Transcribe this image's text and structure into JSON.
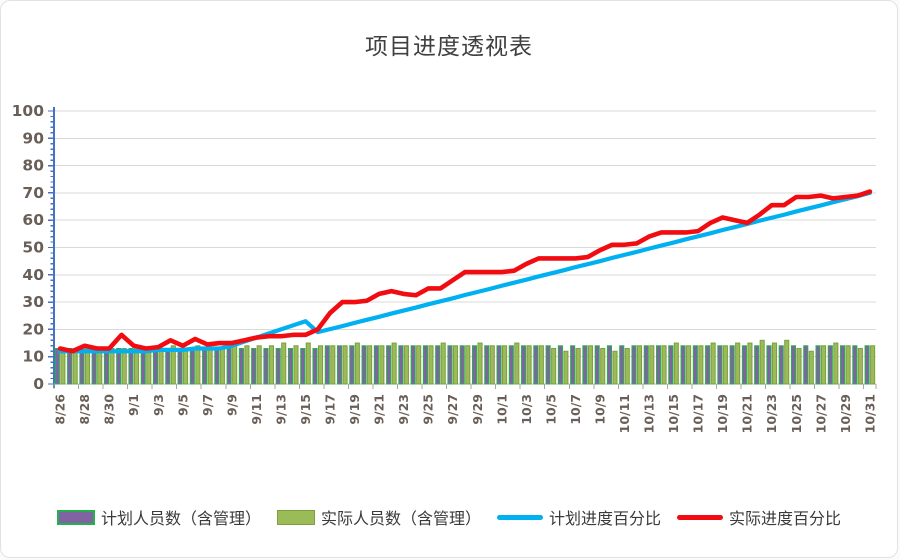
{
  "page": {
    "title": "项目进度透视表"
  },
  "colors": {
    "planned_staff_fill": "#8064A2",
    "planned_staff_border": "#22B14C",
    "actual_staff_fill": "#9BBB59",
    "actual_staff_border": "#7E9E3F",
    "planned_pct_line": "#00B0F0",
    "actual_pct_line": "#F10C12",
    "gridline": "#D9D9D9",
    "y_axis_line": "#4472C4",
    "x_axis_line": "#BFBFBF",
    "tick_mark": "#A6A6A6",
    "tick_label": "#6A5F58",
    "title_text": "#404040",
    "legend_text": "#3A3A3A"
  },
  "legend": {
    "items": [
      {
        "label": "计划人员数（含管理）",
        "swatch": "bar-purple"
      },
      {
        "label": "实际人员数（含管理）",
        "swatch": "bar-green"
      },
      {
        "label": "计划进度百分比",
        "swatch": "line-blue"
      },
      {
        "label": "实际进度百分比",
        "swatch": "line-red"
      }
    ]
  },
  "chart_data": {
    "type": "combo",
    "title": "项目进度透视表",
    "xlabel": "",
    "ylabel": "",
    "ylim": [
      0,
      100
    ],
    "y_step": 10,
    "grid": true,
    "legend_position": "bottom",
    "x_label_every": 2,
    "x": [
      "8/26",
      "8/27",
      "8/28",
      "8/29",
      "8/30",
      "8/31",
      "9/1",
      "9/2",
      "9/3",
      "9/4",
      "9/5",
      "9/6",
      "9/7",
      "9/8",
      "9/9",
      "9/10",
      "9/11",
      "9/12",
      "9/13",
      "9/14",
      "9/15",
      "9/16",
      "9/17",
      "9/18",
      "9/19",
      "9/20",
      "9/21",
      "9/22",
      "9/23",
      "9/24",
      "9/25",
      "9/26",
      "9/27",
      "9/28",
      "9/29",
      "9/30",
      "10/1",
      "10/2",
      "10/3",
      "10/4",
      "10/5",
      "10/6",
      "10/7",
      "10/8",
      "10/9",
      "10/10",
      "10/11",
      "10/12",
      "10/13",
      "10/14",
      "10/15",
      "10/16",
      "10/17",
      "10/18",
      "10/19",
      "10/20",
      "10/21",
      "10/22",
      "10/23",
      "10/24",
      "10/25",
      "10/26",
      "10/27",
      "10/28",
      "10/29",
      "10/30",
      "10/31"
    ],
    "series": [
      {
        "name": "计划人员数（含管理）",
        "type": "bar",
        "values": [
          13,
          13,
          13,
          13,
          13,
          13,
          13,
          13,
          13,
          13,
          13,
          13,
          13,
          13,
          13,
          13,
          13,
          13,
          13,
          13,
          13,
          13,
          14,
          14,
          14,
          14,
          14,
          14,
          14,
          14,
          14,
          14,
          14,
          14,
          14,
          14,
          14,
          14,
          14,
          14,
          14,
          14,
          14,
          14,
          14,
          14,
          14,
          14,
          14,
          14,
          14,
          14,
          14,
          14,
          14,
          14,
          14,
          14,
          14,
          14,
          14,
          14,
          14,
          14,
          14,
          14,
          14
        ]
      },
      {
        "name": "实际人员数（含管理）",
        "type": "bar",
        "values": [
          13,
          13,
          14,
          13,
          13,
          13,
          14,
          13,
          13,
          14,
          13,
          14,
          13,
          13,
          14,
          14,
          14,
          14,
          15,
          14,
          15,
          14,
          14,
          14,
          15,
          14,
          14,
          15,
          14,
          14,
          14,
          15,
          14,
          14,
          15,
          14,
          14,
          15,
          14,
          14,
          13,
          12,
          13,
          14,
          13,
          12,
          13,
          14,
          14,
          14,
          15,
          14,
          14,
          15,
          14,
          15,
          15,
          16,
          15,
          16,
          13,
          12,
          14,
          15,
          14,
          13,
          14
        ]
      },
      {
        "name": "计划进度百分比",
        "type": "line",
        "values": [
          12,
          12,
          12,
          12,
          12,
          12,
          12,
          12,
          12.5,
          12.5,
          12.5,
          13,
          13,
          13,
          14,
          15.5,
          17,
          18.5,
          20,
          21.5,
          23,
          19,
          20.1,
          21.2,
          22.4,
          23.5,
          24.6,
          25.8,
          26.9,
          28,
          29.2,
          30.3,
          31.4,
          32.6,
          33.7,
          34.8,
          36,
          37.1,
          38.2,
          39.4,
          40.5,
          41.6,
          42.8,
          43.9,
          45,
          46.2,
          47.3,
          48.4,
          49.6,
          50.7,
          51.8,
          53,
          54.1,
          55.2,
          56.4,
          57.5,
          58.6,
          59.8,
          60.9,
          62,
          63.2,
          64.3,
          65.4,
          66.6,
          67.7,
          68.8,
          70
        ]
      },
      {
        "name": "实际进度百分比",
        "type": "line",
        "values": [
          13,
          12,
          14,
          13,
          13,
          18,
          14,
          13,
          13.5,
          16,
          14,
          16.5,
          14.5,
          15,
          15,
          16,
          17,
          17.5,
          17.5,
          18,
          18,
          20,
          26,
          30,
          30,
          30.5,
          33,
          34,
          33,
          32.5,
          35,
          35,
          38,
          41,
          41,
          41,
          41,
          41.5,
          44,
          46,
          46,
          46,
          46,
          46.5,
          49,
          51,
          51,
          51.5,
          54,
          55.5,
          55.5,
          55.5,
          56,
          59,
          61,
          60,
          59,
          62,
          65.5,
          65.5,
          68.5,
          68.5,
          69,
          68,
          68.5,
          69,
          70.5
        ]
      }
    ]
  }
}
